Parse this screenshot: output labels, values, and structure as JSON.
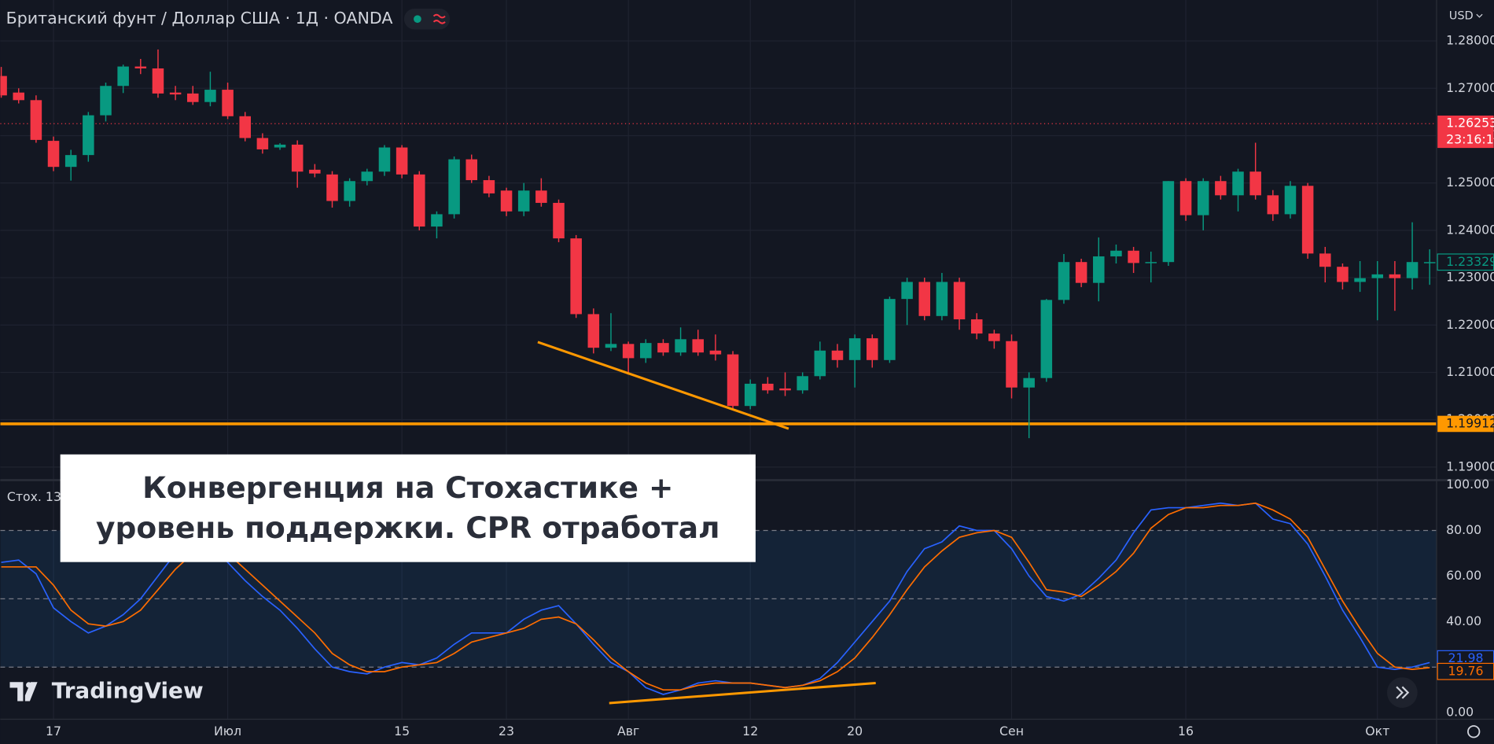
{
  "chart_data": [
    {
      "type": "candlestick",
      "title": "Британский фунт / Доллар США · 1Д · OANDA",
      "currency": "USD",
      "categories": [
        null,
        null,
        null,
        "17",
        null,
        null,
        null,
        null,
        null,
        null,
        null,
        null,
        null,
        "Июл",
        null,
        null,
        null,
        null,
        null,
        null,
        null,
        null,
        null,
        "15",
        null,
        null,
        null,
        null,
        null,
        "23",
        null,
        null,
        null,
        null,
        null,
        null,
        "Авг",
        null,
        null,
        null,
        null,
        null,
        null,
        "12",
        null,
        null,
        null,
        null,
        null,
        "20",
        null,
        null,
        null,
        null,
        null,
        null,
        null,
        null,
        "Сен",
        null,
        null,
        null,
        null,
        null,
        null,
        null,
        null,
        null,
        "16",
        null,
        null,
        null,
        null,
        null,
        null,
        null,
        null,
        null,
        null,
        "Окт",
        null,
        null,
        null
      ],
      "open": [
        1.2726,
        1.2691,
        1.2675,
        1.2589,
        1.2534,
        1.2559,
        1.2643,
        1.2705,
        1.2746,
        1.2742,
        1.2691,
        1.2689,
        1.2671,
        1.2697,
        1.2641,
        1.2595,
        1.2575,
        1.2581,
        1.2528,
        1.2518,
        1.2462,
        1.2504,
        1.2524,
        1.2575,
        1.2518,
        1.2408,
        1.2434,
        1.255,
        1.2506,
        1.2484,
        1.244,
        1.2484,
        1.2458,
        1.2383,
        1.2223,
        1.2152,
        1.216,
        1.213,
        1.2162,
        1.2142,
        1.217,
        1.2146,
        1.2138,
        1.2029,
        1.2076,
        1.2066,
        1.2062,
        1.2092,
        1.2146,
        1.2126,
        1.2172,
        1.2126,
        1.2255,
        1.2291,
        1.2219,
        1.2291,
        1.2212,
        1.2182,
        1.2166,
        1.2068,
        1.2088,
        1.2253,
        1.2333,
        1.2289,
        1.2345,
        1.2357,
        1.2331,
        1.2333,
        1.2504,
        1.2432,
        1.2504,
        1.2474,
        1.2524,
        1.2474,
        1.2434,
        1.2494,
        1.2351,
        1.2323,
        1.2291,
        1.2299,
        1.2307,
        1.2299,
        1.2331
      ],
      "high": [
        1.2745,
        1.27,
        1.2685,
        1.2598,
        1.257,
        1.265,
        1.2712,
        1.275,
        1.2762,
        1.2782,
        1.2705,
        1.2705,
        1.2735,
        1.2712,
        1.265,
        1.2605,
        1.2584,
        1.259,
        1.254,
        1.2525,
        1.251,
        1.253,
        1.258,
        1.258,
        1.2525,
        1.244,
        1.2556,
        1.256,
        1.2515,
        1.249,
        1.25,
        1.251,
        1.2465,
        1.239,
        1.2235,
        1.2225,
        1.2165,
        1.217,
        1.217,
        1.2195,
        1.219,
        1.218,
        1.2145,
        1.2085,
        1.209,
        1.21,
        1.21,
        1.2165,
        1.216,
        1.218,
        1.218,
        1.226,
        1.23,
        1.23,
        1.231,
        1.23,
        1.2225,
        1.219,
        1.218,
        1.21,
        1.2255,
        1.235,
        1.234,
        1.2385,
        1.237,
        1.2365,
        1.2355,
        1.2504,
        1.251,
        1.251,
        1.2515,
        1.253,
        1.2585,
        1.2485,
        1.2504,
        1.25,
        1.2365,
        1.233,
        1.2335,
        1.2335,
        1.2335,
        1.2417,
        1.236
      ],
      "low": [
        1.268,
        1.2668,
        1.2585,
        1.2525,
        1.2505,
        1.2545,
        1.263,
        1.269,
        1.273,
        1.268,
        1.2675,
        1.2665,
        1.2662,
        1.2635,
        1.2588,
        1.2562,
        1.257,
        1.249,
        1.2512,
        1.2448,
        1.245,
        1.2495,
        1.2515,
        1.251,
        1.24,
        1.2383,
        1.2425,
        1.25,
        1.247,
        1.243,
        1.243,
        1.245,
        1.2375,
        1.2215,
        1.214,
        1.2145,
        1.2095,
        1.212,
        1.2135,
        1.2135,
        1.2135,
        1.2125,
        1.202,
        1.2022,
        1.2055,
        1.205,
        1.2055,
        1.2085,
        1.211,
        1.2068,
        1.211,
        1.212,
        1.22,
        1.221,
        1.221,
        1.219,
        1.217,
        1.215,
        1.2045,
        1.1961,
        1.208,
        1.2245,
        1.228,
        1.225,
        1.233,
        1.231,
        1.229,
        1.2325,
        1.242,
        1.24,
        1.2465,
        1.244,
        1.2465,
        1.242,
        1.2425,
        1.234,
        1.229,
        1.2275,
        1.227,
        1.221,
        1.223,
        1.2275,
        1.2285
      ],
      "close": [
        1.2685,
        1.2675,
        1.2591,
        1.2534,
        1.2559,
        1.2643,
        1.2705,
        1.2746,
        1.2742,
        1.2689,
        1.2687,
        1.2671,
        1.2697,
        1.2641,
        1.2595,
        1.2571,
        1.2581,
        1.2524,
        1.252,
        1.2462,
        1.2504,
        1.2524,
        1.2575,
        1.2518,
        1.2408,
        1.2434,
        1.255,
        1.2506,
        1.2478,
        1.244,
        1.2484,
        1.2458,
        1.2383,
        1.2223,
        1.2152,
        1.216,
        1.213,
        1.2162,
        1.2142,
        1.217,
        1.2142,
        1.2138,
        1.2029,
        1.2076,
        1.2062,
        1.2062,
        1.2092,
        1.2146,
        1.2126,
        1.2172,
        1.2126,
        1.2255,
        1.2291,
        1.2219,
        1.2291,
        1.2212,
        1.2182,
        1.2166,
        1.2068,
        1.2088,
        1.2253,
        1.2333,
        1.2289,
        1.2345,
        1.2357,
        1.2331,
        1.2333,
        1.2504,
        1.2432,
        1.2504,
        1.2474,
        1.2524,
        1.2474,
        1.2434,
        1.2494,
        1.2351,
        1.2323,
        1.2291,
        1.2299,
        1.2307,
        1.2299,
        1.2333,
        1.23329
      ],
      "up_color": "#089981",
      "down_color": "#f23645",
      "ylim": [
        1.18744,
        1.28865
      ],
      "yticks": [
        {
          "value": 1.19,
          "label": "1.19000"
        },
        {
          "value": 1.2,
          "label": "1.20000"
        },
        {
          "value": 1.21,
          "label": "1.21000"
        },
        {
          "value": 1.22,
          "label": "1.22000"
        },
        {
          "value": 1.23,
          "label": "1.23000"
        },
        {
          "value": 1.24,
          "label": "1.24000"
        },
        {
          "value": 1.25,
          "label": "1.25000"
        },
        {
          "value": 1.26,
          "label": "1.26000"
        },
        {
          "value": 1.27,
          "label": "1.27000"
        },
        {
          "value": 1.28,
          "label": "1.28000"
        }
      ],
      "grid": true,
      "price_lines": [
        {
          "value": 1.26253,
          "color": "#f23645",
          "style": "dotted",
          "countdown": "23:16:1"
        },
        {
          "value": 1.19912,
          "color": "#ff9800",
          "style": "solid"
        }
      ],
      "trendline": {
        "x": [
          30.8,
          45.2
        ],
        "y": [
          1.2164,
          1.1981
        ],
        "color": "#ff9800"
      },
      "annotation": [
        "Конвергенция на Стохастике +",
        "уровень поддержки. CPR отработал"
      ],
      "logo": "TradingView"
    },
    {
      "type": "line",
      "title": "Стох. 13",
      "series": [
        {
          "color": "#2962ff",
          "values": [
            66,
            67,
            61,
            46,
            40,
            35,
            38,
            43,
            50,
            60,
            70,
            75,
            75,
            66,
            58,
            51,
            45,
            37,
            28,
            20,
            18,
            17,
            20,
            22,
            21,
            24,
            30,
            35,
            35,
            35,
            41,
            45,
            47,
            39,
            30,
            22,
            18,
            11,
            8,
            10,
            13,
            14,
            13,
            13,
            12,
            11,
            12,
            15,
            22,
            31,
            40,
            49,
            62,
            72,
            75,
            82,
            80,
            80,
            72,
            60,
            51,
            49,
            52,
            59,
            67,
            79,
            89,
            90,
            90,
            91,
            92,
            91,
            92,
            85,
            83,
            74,
            60,
            45,
            33,
            20,
            19,
            20,
            21.98
          ]
        },
        {
          "color": "#ff6d00",
          "values": [
            64,
            64,
            64,
            56,
            45,
            39,
            38,
            40,
            45,
            54,
            63,
            70,
            74,
            70,
            63,
            56,
            49,
            42,
            35,
            26,
            21,
            18,
            18,
            20,
            21,
            22,
            26,
            31,
            33,
            35,
            37,
            41,
            42,
            39,
            32,
            24,
            18,
            13,
            10,
            10,
            12,
            13,
            13,
            13,
            12,
            11,
            12,
            14,
            18,
            24,
            33,
            43,
            54,
            64,
            71,
            77,
            79,
            80,
            77,
            66,
            54,
            53,
            51,
            56,
            62,
            70,
            81,
            87,
            90,
            90,
            91,
            91,
            92,
            89,
            85,
            77,
            63,
            49,
            37,
            26,
            20,
            19,
            19.76
          ]
        }
      ],
      "ylim": [
        -2.9,
        101.7
      ],
      "yticks": [
        {
          "value": 0,
          "label": "0.00"
        },
        {
          "value": 20,
          "label": "20.00"
        },
        {
          "value": 40,
          "label": "40.00"
        },
        {
          "value": 60,
          "label": "60.00"
        },
        {
          "value": 80,
          "label": "80.00"
        },
        {
          "value": 100,
          "label": "100.00"
        }
      ],
      "band": [
        20,
        80
      ],
      "levels": [
        20,
        50,
        80
      ],
      "trendline": {
        "x": [
          34.9,
          50.2
        ],
        "y": [
          4.2,
          13
        ],
        "color": "#ff9800"
      }
    }
  ]
}
